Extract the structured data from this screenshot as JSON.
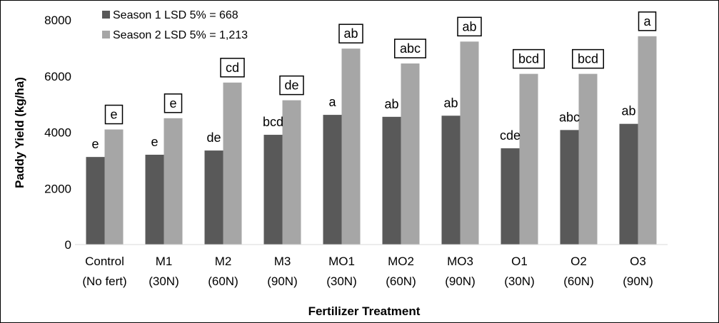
{
  "chart_data": {
    "type": "bar",
    "xlabel": "Fertilizer Treatment",
    "ylabel": "Paddy Yield (kg/ha)",
    "ylim": [
      0,
      8000
    ],
    "yticks": [
      "0",
      "2000",
      "4000",
      "6000",
      "8000"
    ],
    "categories": [
      {
        "line1": "Control",
        "line2": "(No fert)"
      },
      {
        "line1": "M1",
        "line2": "(30N)"
      },
      {
        "line1": "M2",
        "line2": "(60N)"
      },
      {
        "line1": "M3",
        "line2": "(90N)"
      },
      {
        "line1": "MO1",
        "line2": "(30N)"
      },
      {
        "line1": "MO2",
        "line2": "(60N)"
      },
      {
        "line1": "MO3",
        "line2": "(90N)"
      },
      {
        "line1": "O1",
        "line2": "(30N)"
      },
      {
        "line1": "O2",
        "line2": "(60N)"
      },
      {
        "line1": "O3",
        "line2": "(90N)"
      }
    ],
    "series": [
      {
        "name": "Season 1 LSD 5% = 668",
        "color": "#595959",
        "values": [
          3120,
          3200,
          3350,
          3910,
          4620,
          4550,
          4590,
          3430,
          4080,
          4300
        ],
        "labels": [
          "e",
          "e",
          "de",
          "bcd",
          "a",
          "ab",
          "ab",
          "cde",
          "abc",
          "ab"
        ],
        "boxed": false
      },
      {
        "name": "Season 2 LSD 5% = 1,213",
        "color": "#a6a6a6",
        "values": [
          4100,
          4500,
          5770,
          5140,
          6980,
          6450,
          7230,
          6080,
          6080,
          7420
        ],
        "labels": [
          "e",
          "e",
          "cd",
          "de",
          "ab",
          "abc",
          "ab",
          "bcd",
          "bcd",
          "a"
        ],
        "boxed": true
      }
    ],
    "legend_position": "top-left",
    "grid": false
  }
}
